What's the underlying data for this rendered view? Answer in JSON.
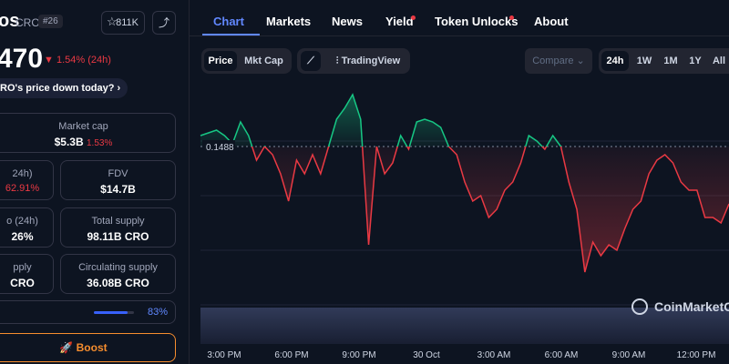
{
  "header": {
    "name": "os",
    "symbol": "CRO",
    "rank": "#26",
    "watchlist": "811K",
    "price": "470",
    "change": "1.54% (24h)",
    "question": "RO's price down today?"
  },
  "stats": [
    {
      "label": "Market cap",
      "value": "$5.3B",
      "change": "1.53%"
    },
    {
      "label": "24h)",
      "value": "62.91%"
    },
    {
      "label": "FDV",
      "value": "$14.7B"
    },
    {
      "label": "o (24h)",
      "value": "26%"
    },
    {
      "label": "Total supply",
      "value": "98.11B CRO"
    },
    {
      "label": "pply",
      "value": "CRO"
    },
    {
      "label": "Circulating supply",
      "value": "36.08B CRO"
    }
  ],
  "circulating_pct": {
    "value": 83,
    "label": "83%"
  },
  "boost": "Boost",
  "tabs": [
    "Chart",
    "Markets",
    "News",
    "Yield",
    "Token Unlocks",
    "About"
  ],
  "toolbar": {
    "modes": [
      "Price",
      "Mkt Cap"
    ],
    "tradingview": "TradingView",
    "compare": "Compare",
    "ranges": [
      "24h",
      "1W",
      "1M",
      "1Y",
      "All"
    ]
  },
  "chart_data": {
    "type": "line",
    "color_up": "#16c784",
    "color_down": "#ea3943",
    "ylim": [
      0.143,
      0.151
    ],
    "baseline": 0.1488,
    "x_labels": [
      "3:00 PM",
      "6:00 PM",
      "9:00 PM",
      "30 Oct",
      "3:00 AM",
      "6:00 AM",
      "9:00 AM",
      "12:00 PM"
    ],
    "values": [
      0.1492,
      0.1493,
      0.1494,
      0.1492,
      0.1489,
      0.1497,
      0.1492,
      0.1483,
      0.1488,
      0.1485,
      0.1478,
      0.1468,
      0.1483,
      0.1478,
      0.1485,
      0.1478,
      0.1488,
      0.1498,
      0.1502,
      0.1507,
      0.1498,
      0.1452,
      0.1488,
      0.1478,
      0.1482,
      0.1492,
      0.1487,
      0.1497,
      0.1498,
      0.1497,
      0.1495,
      0.1488,
      0.1485,
      0.1475,
      0.1468,
      0.147,
      0.1462,
      0.1465,
      0.1472,
      0.1475,
      0.1482,
      0.1492,
      0.149,
      0.1487,
      0.1492,
      0.1488,
      0.1475,
      0.1465,
      0.1442,
      0.1453,
      0.1448,
      0.1452,
      0.145,
      0.1458,
      0.1465,
      0.1468,
      0.1478,
      0.1483,
      0.1485,
      0.1482,
      0.1475,
      0.1472,
      0.1472,
      0.1462,
      0.1462,
      0.146,
      0.1467
    ],
    "watermark": "CoinMarketCap"
  }
}
